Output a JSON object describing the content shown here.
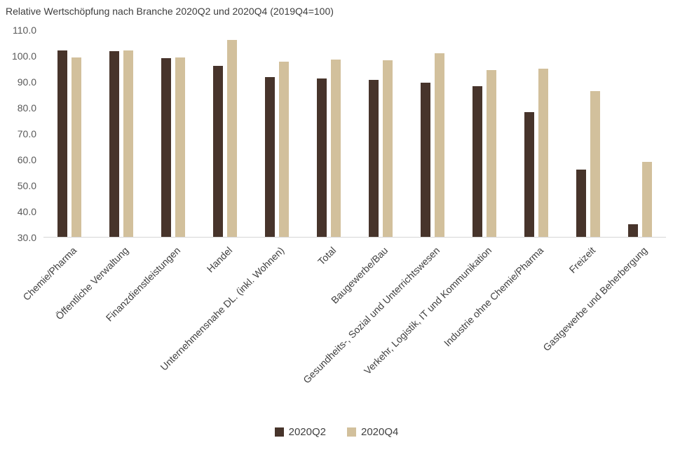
{
  "chart_data": {
    "type": "bar",
    "title": "Relative Wertschöpfung nach Branche 2020Q2 und 2020Q4 (2019Q4=100)",
    "categories": [
      "Chemie/Pharma",
      "Öffentliche Verwaltung",
      "Finanzdienstleistungen",
      "Handel",
      "Unternehmensnahe DL. (inkl. Wohnen)",
      "Total",
      "Baugewerbe/Bau",
      "Gesundheits-, Sozial und Unterrichtswesen",
      "Verkehr, Logistik, IT und Kommunikation",
      "Industrie ohne Chemie/Pharma",
      "Freizeit",
      "Gastgewerbe und Beherbergung"
    ],
    "series": [
      {
        "name": "2020Q2",
        "color": "#47342b",
        "values": [
          102.0,
          101.5,
          99.0,
          96.0,
          91.5,
          91.0,
          90.5,
          89.5,
          88.0,
          78.0,
          56.0,
          35.0
        ]
      },
      {
        "name": "2020Q4",
        "color": "#d2c09c",
        "values": [
          99.3,
          102.0,
          99.2,
          106.0,
          97.5,
          98.5,
          98.0,
          100.7,
          94.3,
          95.0,
          86.2,
          59.0
        ]
      }
    ],
    "ylim": [
      30,
      110
    ],
    "yticks": [
      110,
      100,
      90,
      80,
      70,
      60,
      50,
      40,
      30
    ],
    "ytick_format_decimals": 1,
    "grid": false,
    "legend_position": "bottom"
  }
}
